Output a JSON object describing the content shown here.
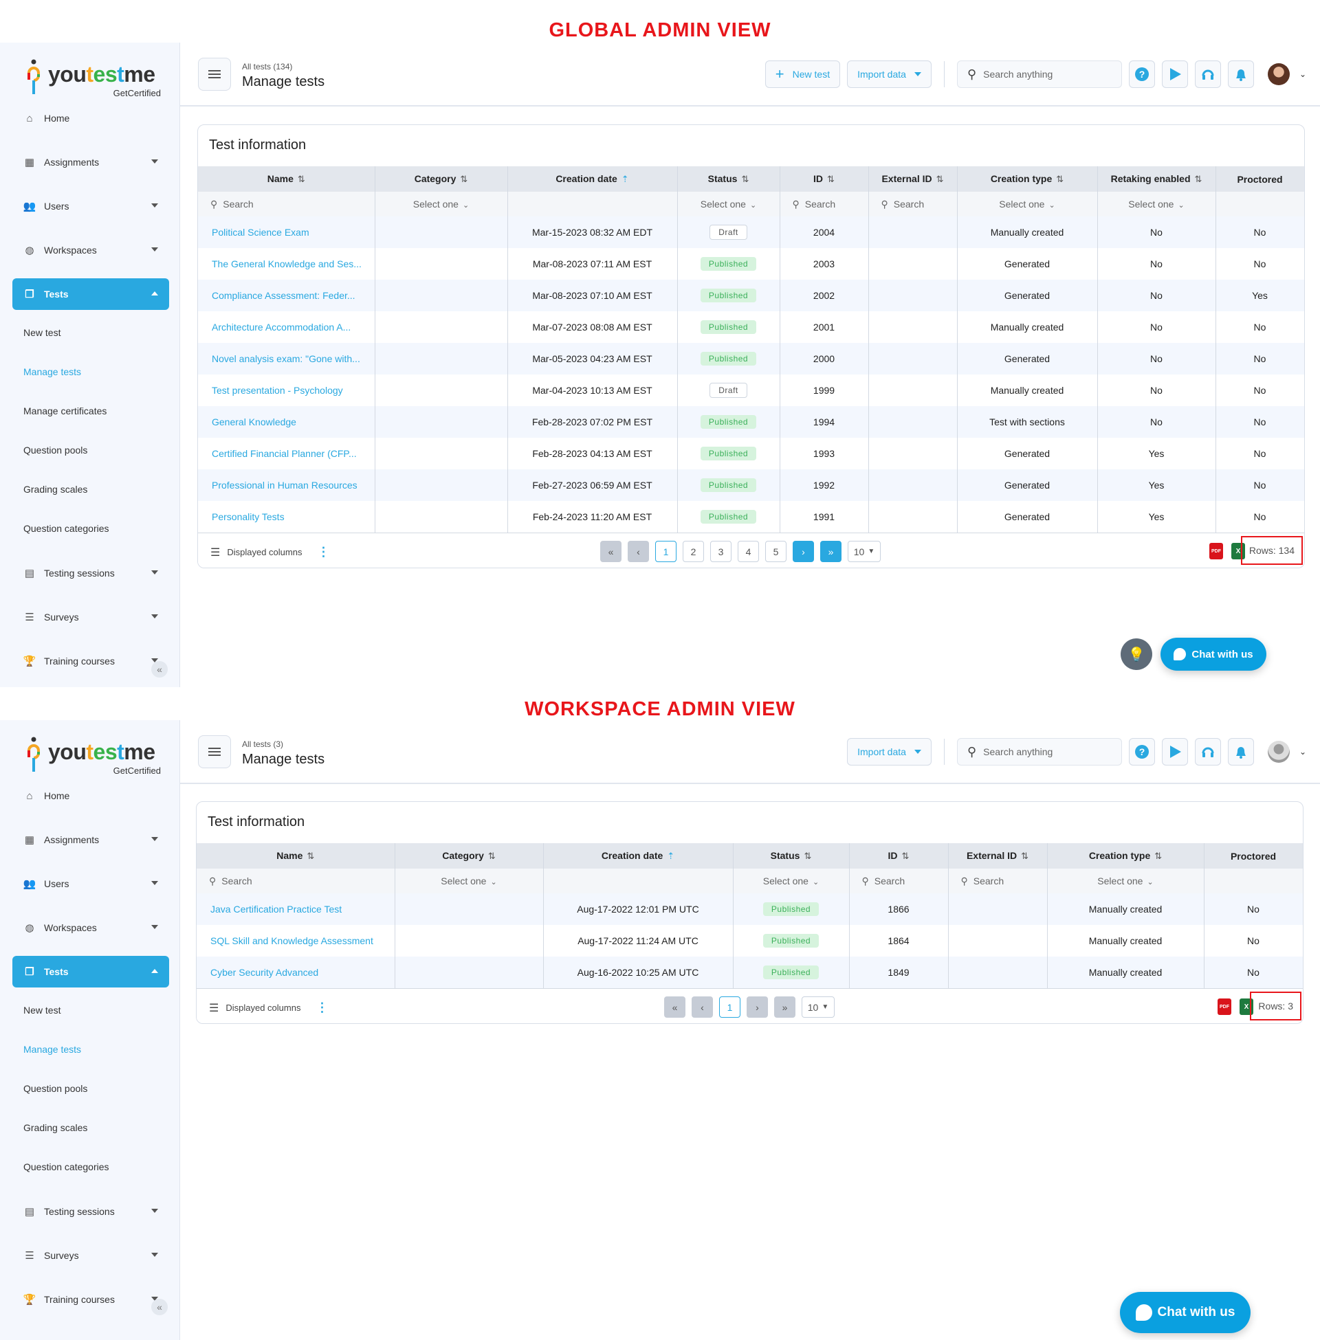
{
  "colors": {
    "accent": "#29a8e0",
    "annotation_red": "#e8161b",
    "published_bg": "#d6f3dd",
    "published_text": "#3bb05a"
  },
  "views": [
    {
      "label": "GLOBAL ADMIN VIEW",
      "logo": {
        "brand": "youtestme",
        "tagline": "GetCertified"
      },
      "sidebar": {
        "items": [
          {
            "label": "Home",
            "icon": "home-icon",
            "caret": false
          },
          {
            "label": "Assignments",
            "icon": "assignments-icon",
            "caret": true
          },
          {
            "label": "Users",
            "icon": "users-icon",
            "caret": true
          },
          {
            "label": "Workspaces",
            "icon": "globe-icon",
            "caret": true
          },
          {
            "label": "Tests",
            "icon": "tests-icon",
            "caret": true,
            "active": true
          }
        ],
        "subitems": [
          {
            "label": "New test"
          },
          {
            "label": "Manage tests",
            "current": true
          },
          {
            "label": "Manage certificates"
          },
          {
            "label": "Question pools"
          },
          {
            "label": "Grading scales"
          },
          {
            "label": "Question categories"
          }
        ],
        "items_after": [
          {
            "label": "Testing sessions",
            "icon": "calendar-icon"
          },
          {
            "label": "Surveys",
            "icon": "surveys-icon"
          },
          {
            "label": "Training courses",
            "icon": "trophy-icon"
          }
        ]
      },
      "header": {
        "breadcrumb": "All tests (134)",
        "title": "Manage tests",
        "new_test": "New test",
        "import_data": "Import data",
        "search_placeholder": "Search anything"
      },
      "card_title": "Test information",
      "columns": [
        {
          "label": "Name",
          "filter": "Search",
          "filter_type": "search",
          "sort": "both"
        },
        {
          "label": "Category",
          "filter": "Select one",
          "filter_type": "select",
          "sort": "both"
        },
        {
          "label": "Creation date",
          "filter": "",
          "filter_type": "none",
          "sort": "asc"
        },
        {
          "label": "Status",
          "filter": "Select one",
          "filter_type": "select",
          "sort": "both"
        },
        {
          "label": "ID",
          "filter": "Search",
          "filter_type": "search",
          "sort": "both"
        },
        {
          "label": "External ID",
          "filter": "Search",
          "filter_type": "search",
          "sort": "both"
        },
        {
          "label": "Creation type",
          "filter": "Select one",
          "filter_type": "select",
          "sort": "both"
        },
        {
          "label": "Retaking enabled",
          "filter": "Select one",
          "filter_type": "select",
          "sort": "both"
        },
        {
          "label": "Proctored",
          "filter": "",
          "filter_type": "none",
          "sort": "none"
        }
      ],
      "rows": [
        [
          "Political Science Exam",
          "",
          "Mar-15-2023 08:32 AM EDT",
          "Draft",
          "2004",
          "",
          "Manually created",
          "No",
          "No"
        ],
        [
          "The General Knowledge and Ses...",
          "",
          "Mar-08-2023 07:11 AM EST",
          "Published",
          "2003",
          "",
          "Generated",
          "No",
          "No"
        ],
        [
          "Compliance Assessment: Feder...",
          "",
          "Mar-08-2023 07:10 AM EST",
          "Published",
          "2002",
          "",
          "Generated",
          "No",
          "Yes"
        ],
        [
          "Architecture Accommodation A...",
          "",
          "Mar-07-2023 08:08 AM EST",
          "Published",
          "2001",
          "",
          "Manually created",
          "No",
          "No"
        ],
        [
          "Novel analysis exam: \"Gone with...",
          "",
          "Mar-05-2023 04:23 AM EST",
          "Published",
          "2000",
          "",
          "Generated",
          "No",
          "No"
        ],
        [
          "Test presentation - Psychology",
          "",
          "Mar-04-2023 10:13 AM EST",
          "Draft",
          "1999",
          "",
          "Manually created",
          "No",
          "No"
        ],
        [
          "General Knowledge",
          "",
          "Feb-28-2023 07:02 PM EST",
          "Published",
          "1994",
          "",
          "Test with sections",
          "No",
          "No"
        ],
        [
          "Certified Financial Planner (CFP...",
          "",
          "Feb-28-2023 04:13 AM EST",
          "Published",
          "1993",
          "",
          "Generated",
          "Yes",
          "No"
        ],
        [
          "Professional in Human Resources",
          "",
          "Feb-27-2023 06:59 AM EST",
          "Published",
          "1992",
          "",
          "Generated",
          "Yes",
          "No"
        ],
        [
          "Personality Tests",
          "",
          "Feb-24-2023 11:20 AM EST",
          "Published",
          "1991",
          "",
          "Generated",
          "Yes",
          "No"
        ]
      ],
      "footer": {
        "displayed_columns": "Displayed columns",
        "pages": [
          "1",
          "2",
          "3",
          "4",
          "5"
        ],
        "current_page": "1",
        "page_size": "10",
        "rows": "Rows: 134",
        "pdf": "PDF",
        "excel": "X"
      },
      "chat": "Chat with us"
    },
    {
      "label": "WORKSPACE ADMIN VIEW",
      "logo": {
        "brand": "youtestme",
        "tagline": "GetCertified"
      },
      "sidebar": {
        "items": [
          {
            "label": "Home",
            "icon": "home-icon",
            "caret": false
          },
          {
            "label": "Assignments",
            "icon": "assignments-icon",
            "caret": true
          },
          {
            "label": "Users",
            "icon": "users-icon",
            "caret": true
          },
          {
            "label": "Workspaces",
            "icon": "globe-icon",
            "caret": true
          },
          {
            "label": "Tests",
            "icon": "tests-icon",
            "caret": true,
            "active": true
          }
        ],
        "subitems": [
          {
            "label": "New test"
          },
          {
            "label": "Manage tests",
            "current": true
          },
          {
            "label": "Question pools"
          },
          {
            "label": "Grading scales"
          },
          {
            "label": "Question categories"
          }
        ],
        "items_after": [
          {
            "label": "Testing sessions",
            "icon": "calendar-icon"
          },
          {
            "label": "Surveys",
            "icon": "surveys-icon"
          },
          {
            "label": "Training courses",
            "icon": "trophy-icon"
          }
        ]
      },
      "header": {
        "breadcrumb": "All tests (3)",
        "title": "Manage tests",
        "import_data": "Import data",
        "search_placeholder": "Search anything"
      },
      "card_title": "Test information",
      "columns": [
        {
          "label": "Name",
          "filter": "Search",
          "filter_type": "search",
          "sort": "both"
        },
        {
          "label": "Category",
          "filter": "Select one",
          "filter_type": "select",
          "sort": "both"
        },
        {
          "label": "Creation date",
          "filter": "",
          "filter_type": "none",
          "sort": "asc"
        },
        {
          "label": "Status",
          "filter": "Select one",
          "filter_type": "select",
          "sort": "both"
        },
        {
          "label": "ID",
          "filter": "Search",
          "filter_type": "search",
          "sort": "both"
        },
        {
          "label": "External ID",
          "filter": "Search",
          "filter_type": "search",
          "sort": "both"
        },
        {
          "label": "Creation type",
          "filter": "Select one",
          "filter_type": "select",
          "sort": "both"
        },
        {
          "label": "Proctored",
          "filter": "",
          "filter_type": "none",
          "sort": "none"
        }
      ],
      "rows": [
        [
          "Java Certification Practice Test",
          "",
          "Aug-17-2022 12:01 PM UTC",
          "Published",
          "1866",
          "",
          "Manually created",
          "No"
        ],
        [
          "SQL Skill and Knowledge Assessment",
          "",
          "Aug-17-2022 11:24 AM UTC",
          "Published",
          "1864",
          "",
          "Manually created",
          "No"
        ],
        [
          "Cyber Security Advanced",
          "",
          "Aug-16-2022 10:25 AM UTC",
          "Published",
          "1849",
          "",
          "Manually created",
          "No"
        ]
      ],
      "footer": {
        "displayed_columns": "Displayed columns",
        "pages": [
          "1"
        ],
        "current_page": "1",
        "page_size": "10",
        "rows": "Rows: 3",
        "pdf": "PDF",
        "excel": "X"
      },
      "chat": "Chat with us"
    }
  ]
}
